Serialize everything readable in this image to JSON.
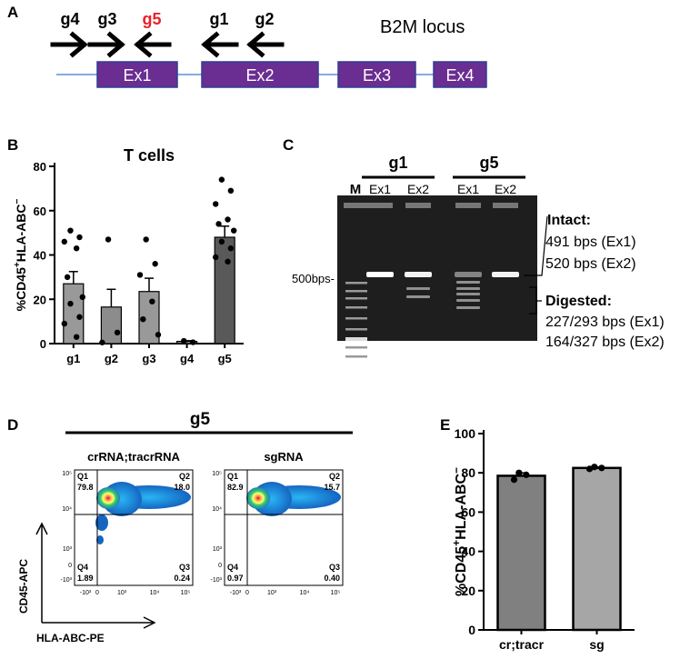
{
  "panel_labels": {
    "a": "A",
    "b": "B",
    "c": "C",
    "d": "D",
    "e": "E"
  },
  "panel_a": {
    "title": "B2M locus",
    "guides": [
      {
        "label": "g4",
        "direction": "right",
        "color": "#000000"
      },
      {
        "label": "g3",
        "direction": "right",
        "color": "#000000"
      },
      {
        "label": "g5",
        "direction": "left",
        "color": "#e8202a"
      },
      {
        "label": "g1",
        "direction": "left",
        "color": "#000000"
      },
      {
        "label": "g2",
        "direction": "left",
        "color": "#000000"
      }
    ],
    "exons": [
      "Ex1",
      "Ex2",
      "Ex3",
      "Ex4"
    ],
    "exon_color": "#6a2d91",
    "line_color": "#5b8fd6"
  },
  "chart_data": [
    {
      "type": "bar",
      "panel": "B",
      "title": "T cells",
      "ylabel_parts": [
        "%CD45",
        "+",
        "HLA-ABC",
        "−"
      ],
      "categories": [
        "g1",
        "g2",
        "g3",
        "g4",
        "g5"
      ],
      "values": [
        27,
        16.5,
        23.5,
        1,
        48
      ],
      "sem": [
        5.5,
        8,
        6,
        0.3,
        5
      ],
      "points": [
        [
          51,
          48,
          46,
          43,
          30,
          21,
          18,
          12,
          9,
          3
        ],
        [
          47,
          5,
          0.5
        ],
        [
          47,
          36,
          31,
          19,
          11,
          4
        ],
        [
          1.2,
          0.6
        ],
        [
          74,
          69,
          63,
          56,
          54,
          51,
          46,
          43,
          39,
          37
        ]
      ],
      "ylim": [
        0,
        80
      ],
      "yticks": [
        "0",
        "20",
        "40",
        "60",
        "80"
      ],
      "colors": [
        "#999999",
        "#8c8c8c",
        "#999999",
        "#8c8c8c",
        "#595959"
      ]
    },
    {
      "type": "bar",
      "panel": "E",
      "ylabel_parts": [
        "%CD45",
        "+",
        "HLA-ABC",
        "−"
      ],
      "categories": [
        "cr;tracr",
        "sg"
      ],
      "values": [
        78.5,
        82.5
      ],
      "sem": [
        1.5,
        0.5
      ],
      "points": [
        [
          80,
          79,
          76.5
        ],
        [
          83,
          82.5,
          82
        ]
      ],
      "ylim": [
        0,
        100
      ],
      "yticks": [
        "0",
        "20",
        "40",
        "60",
        "80",
        "100"
      ],
      "colors": [
        "#808080",
        "#a6a6a6"
      ]
    }
  ],
  "panel_c": {
    "group_labels": [
      "g1",
      "g5"
    ],
    "marker": "M",
    "lane_labels": [
      "Ex1",
      "Ex2",
      "Ex1",
      "Ex2"
    ],
    "size_marker": "500bps-",
    "intact_title": "Intact:",
    "intact_lines": [
      "491 bps (Ex1)",
      "520 bps (Ex2)"
    ],
    "digested_title": "Digested:",
    "digested_lines": [
      "227/293 bps (Ex1)",
      "164/327 bps (Ex2)"
    ]
  },
  "panel_d": {
    "title": "g5",
    "plots": [
      {
        "name": "crRNA;tracrRNA",
        "q1": "79.8",
        "q2": "18.0",
        "q3": "0.24",
        "q4": "1.89"
      },
      {
        "name": "sgRNA",
        "q1": "82.9",
        "q2": "15.7",
        "q3": "0.40",
        "q4": "0.97"
      }
    ],
    "quadrant_labels": [
      "Q1",
      "Q2",
      "Q3",
      "Q4"
    ],
    "y_axis_label": "CD45-APC",
    "x_axis_label": "HLA-ABC-PE",
    "y_ticks": [
      "10⁵",
      "10⁴",
      "10³",
      "0",
      "-10³"
    ],
    "x_ticks": [
      "-10³",
      "0",
      "10³",
      "10⁴",
      "10⁵"
    ]
  }
}
